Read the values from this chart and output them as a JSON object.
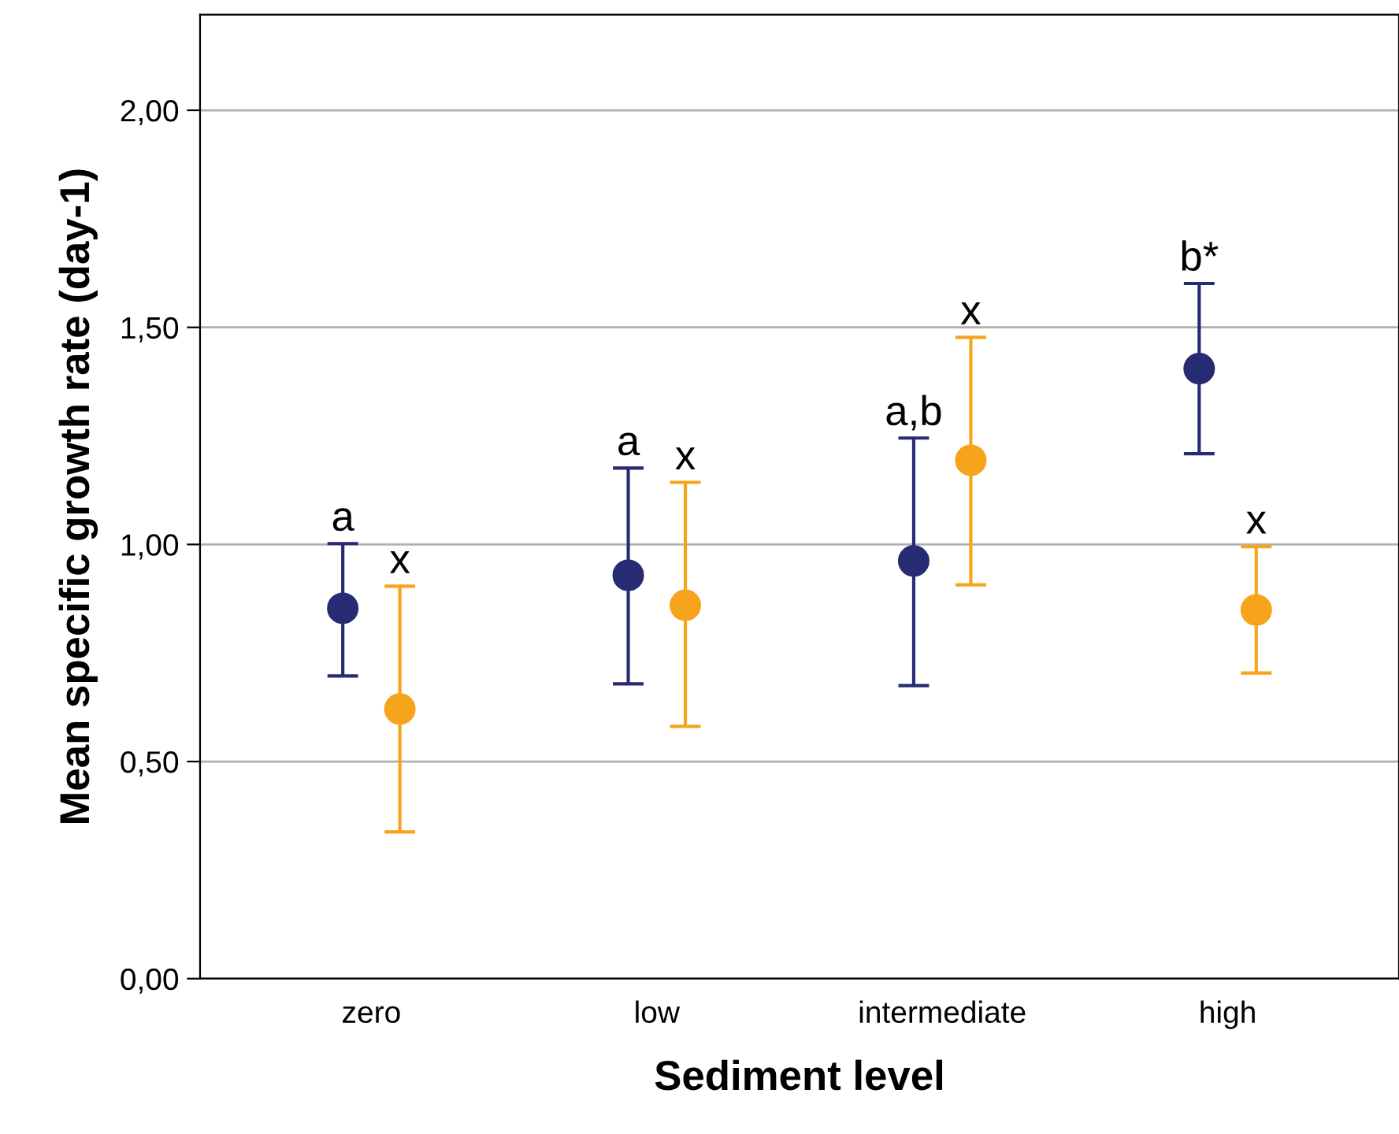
{
  "chart_data": {
    "type": "scatter",
    "xlabel": "Sediment level",
    "ylabel": "Mean specific growth rate (day-1)",
    "categories": [
      "zero",
      "low",
      "intermediate",
      "high"
    ],
    "series": [
      {
        "color": "#262b73",
        "values": [
          0.853,
          0.929,
          0.962,
          1.405
        ],
        "errors": [
          [
            0.697,
            1.002
          ],
          [
            0.679,
            1.176
          ],
          [
            0.675,
            1.245
          ],
          [
            1.209,
            1.601
          ]
        ]
      },
      {
        "color": "#f7a41d",
        "values": [
          0.621,
          0.86,
          1.194,
          0.849
        ],
        "errors": [
          [
            0.338,
            0.904
          ],
          [
            0.581,
            1.143
          ],
          [
            0.907,
            1.477
          ],
          [
            0.704,
            0.995
          ]
        ]
      }
    ],
    "ylim": [
      0,
      2.22
    ],
    "yticks": [
      {
        "value": 0,
        "label": "0,00"
      },
      {
        "value": 0.5,
        "label": "0,50"
      },
      {
        "value": 1,
        "label": "1,00"
      },
      {
        "value": 1.5,
        "label": "1,50"
      },
      {
        "value": 2,
        "label": "2,00"
      }
    ],
    "grid": "y",
    "marker": "circle",
    "annotations": [
      "a",
      "x",
      "a",
      "x",
      "a,b",
      "x",
      "b*",
      "x"
    ]
  }
}
